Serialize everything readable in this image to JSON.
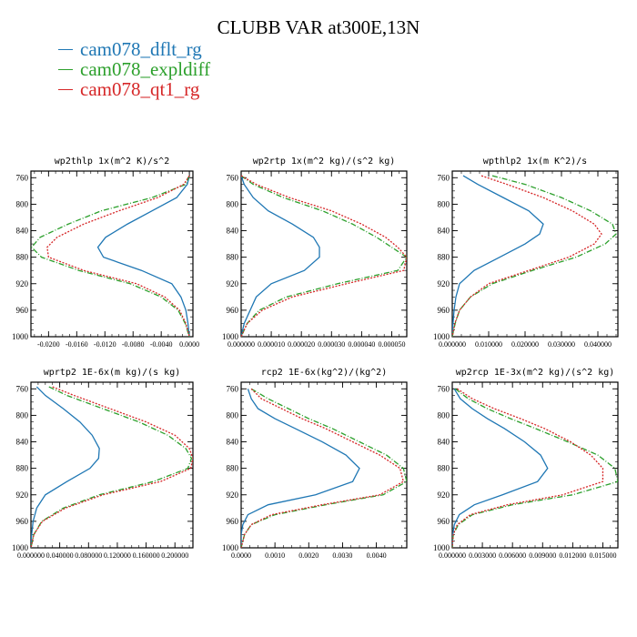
{
  "title": "CLUBB VAR at300E,13N",
  "legend": [
    {
      "name": "cam078_dflt_rg",
      "color": "#1f77b4",
      "dash": "solid"
    },
    {
      "name": "cam078_expldiff",
      "color": "#2ca02c",
      "dash": "dashdot"
    },
    {
      "name": "cam078_qt1_rg",
      "color": "#d62728",
      "dash": "dotted"
    }
  ],
  "chart_data": [
    {
      "type": "line",
      "title": "wp2thlp  1x(m^2 K)/s^2",
      "ylim": [
        1000,
        750
      ],
      "yticks": [
        760,
        800,
        840,
        880,
        920,
        960,
        1000
      ],
      "xlim": [
        -0.0225,
        0.0005
      ],
      "xticks": [
        -0.02,
        -0.016,
        -0.012,
        -0.008,
        -0.004,
        0.0
      ],
      "xtick_labels": [
        "-0.0200",
        "-0.0160",
        "-0.0120",
        "-0.0080",
        "-0.0040",
        "0.0000"
      ],
      "y": [
        757,
        770,
        790,
        810,
        830,
        850,
        865,
        880,
        900,
        920,
        940,
        960,
        980,
        1000
      ],
      "series": [
        {
          "name": "cam078_dflt_rg",
          "values": [
            0,
            -0.0003,
            -0.0018,
            -0.0053,
            -0.0088,
            -0.0119,
            -0.013,
            -0.0122,
            -0.0068,
            -0.0025,
            -0.0012,
            -0.0005,
            -0.0002,
            0
          ]
        },
        {
          "name": "cam078_expldiff",
          "values": [
            0,
            -0.0005,
            -0.0053,
            -0.0125,
            -0.0172,
            -0.0212,
            -0.0224,
            -0.021,
            -0.0157,
            -0.0084,
            -0.004,
            -0.0016,
            -0.0006,
            0
          ]
        },
        {
          "name": "cam078_qt1_rg",
          "values": [
            0,
            -0.0008,
            -0.0045,
            -0.01,
            -0.015,
            -0.0188,
            -0.0202,
            -0.02,
            -0.015,
            -0.0075,
            -0.0035,
            -0.0014,
            -0.0005,
            0
          ]
        }
      ]
    },
    {
      "type": "line",
      "title": "wp2rtp  1x(m^2 kg)/(s^2 kg)",
      "ylim": [
        1000,
        750
      ],
      "yticks": [
        760,
        800,
        840,
        880,
        920,
        960,
        1000
      ],
      "xlim": [
        0,
        5.5e-05
      ],
      "xticks": [
        0,
        1e-05,
        2e-05,
        3e-05,
        4e-05,
        5e-05
      ],
      "xtick_labels": [
        "0.000000",
        "0.000010",
        "0.000020",
        "0.000030",
        "0.000040",
        "0.000050"
      ],
      "y": [
        757,
        770,
        790,
        810,
        830,
        850,
        865,
        880,
        900,
        920,
        940,
        960,
        980,
        1000
      ],
      "series": [
        {
          "name": "cam078_dflt_rg",
          "values": [
            0,
            1e-06,
            4e-06,
            9e-06,
            1.7e-05,
            2.4e-05,
            2.6e-05,
            2.6e-05,
            2.1e-05,
            1e-05,
            5e-06,
            3e-06,
            1e-06,
            0
          ]
        },
        {
          "name": "cam078_expldiff",
          "values": [
            0,
            4e-06,
            1.4e-05,
            2.7e-05,
            3.7e-05,
            4.5e-05,
            5e-05,
            5.5e-05,
            5.2e-05,
            3.2e-05,
            1.5e-05,
            6e-06,
            2e-06,
            0
          ]
        },
        {
          "name": "cam078_qt1_rg",
          "values": [
            0,
            5e-06,
            1.6e-05,
            3e-05,
            4e-05,
            4.8e-05,
            5.2e-05,
            5.5e-05,
            5.4e-05,
            3.5e-05,
            1.7e-05,
            7e-06,
            2e-06,
            0
          ]
        }
      ]
    },
    {
      "type": "line",
      "title": "wpthlp2  1x(m K^2)/s",
      "ylim": [
        1000,
        750
      ],
      "yticks": [
        760,
        800,
        840,
        880,
        920,
        960,
        1000
      ],
      "xlim": [
        0,
        0.0455
      ],
      "xticks": [
        0,
        0.01,
        0.02,
        0.03,
        0.04
      ],
      "xtick_labels": [
        "0.000000",
        "0.010000",
        "0.020000",
        "0.030000",
        "0.040000"
      ],
      "y": [
        757,
        770,
        790,
        810,
        830,
        845,
        860,
        880,
        900,
        920,
        940,
        960,
        980,
        1000
      ],
      "series": [
        {
          "name": "cam078_dflt_rg",
          "values": [
            0.003,
            0.007,
            0.014,
            0.021,
            0.025,
            0.024,
            0.02,
            0.013,
            0.006,
            0.002,
            0.001,
            0.0005,
            0.0002,
            0
          ]
        },
        {
          "name": "cam078_expldiff",
          "values": [
            0.011,
            0.02,
            0.03,
            0.038,
            0.044,
            0.045,
            0.042,
            0.034,
            0.022,
            0.011,
            0.005,
            0.002,
            0.0008,
            0
          ]
        },
        {
          "name": "cam078_qt1_rg",
          "values": [
            0.008,
            0.015,
            0.025,
            0.033,
            0.039,
            0.041,
            0.039,
            0.032,
            0.021,
            0.01,
            0.005,
            0.002,
            0.0007,
            0
          ]
        }
      ]
    },
    {
      "type": "line",
      "title": "wprtp2  1E-6x(m kg)/(s kg)",
      "ylim": [
        1000,
        750
      ],
      "yticks": [
        760,
        800,
        840,
        880,
        920,
        960,
        1000
      ],
      "xlim": [
        0,
        0.225
      ],
      "xticks": [
        0,
        0.04,
        0.08,
        0.12,
        0.16,
        0.2
      ],
      "xtick_labels": [
        "0.000000",
        "0.040000",
        "0.080000",
        "0.120000",
        "0.160000",
        "0.200000"
      ],
      "y": [
        757,
        770,
        790,
        810,
        830,
        850,
        865,
        880,
        900,
        920,
        940,
        960,
        980,
        1000
      ],
      "series": [
        {
          "name": "cam078_dflt_rg",
          "values": [
            0.008,
            0.02,
            0.045,
            0.068,
            0.085,
            0.095,
            0.094,
            0.082,
            0.05,
            0.02,
            0.008,
            0.003,
            0.001,
            0
          ]
        },
        {
          "name": "cam078_expldiff",
          "values": [
            0.025,
            0.05,
            0.1,
            0.15,
            0.19,
            0.215,
            0.223,
            0.218,
            0.17,
            0.095,
            0.045,
            0.015,
            0.004,
            0
          ]
        },
        {
          "name": "cam078_qt1_rg",
          "values": [
            0.03,
            0.06,
            0.11,
            0.16,
            0.2,
            0.22,
            0.225,
            0.222,
            0.18,
            0.1,
            0.048,
            0.016,
            0.004,
            0
          ]
        }
      ]
    },
    {
      "type": "line",
      "title": "rcp2  1E-6x(kg^2)/(kg^2)",
      "ylim": [
        1000,
        750
      ],
      "yticks": [
        760,
        800,
        840,
        880,
        920,
        960,
        1000
      ],
      "xlim": [
        0,
        0.0049
      ],
      "xticks": [
        0,
        0.001,
        0.002,
        0.003,
        0.004
      ],
      "xtick_labels": [
        "0.0000",
        "0.0010",
        "0.0020",
        "0.0030",
        "0.0040"
      ],
      "y": [
        760,
        775,
        790,
        805,
        820,
        840,
        860,
        880,
        900,
        920,
        935,
        950,
        965,
        980,
        1000
      ],
      "series": [
        {
          "name": "cam078_dflt_rg",
          "values": [
            0.0002,
            0.0003,
            0.0005,
            0.001,
            0.0016,
            0.0024,
            0.0031,
            0.0035,
            0.0033,
            0.0022,
            0.0008,
            0.0002,
            5e-05,
            0,
            0
          ]
        },
        {
          "name": "cam078_expldiff",
          "values": [
            0.0003,
            0.0008,
            0.0014,
            0.002,
            0.0027,
            0.0035,
            0.0043,
            0.0048,
            0.0049,
            0.0042,
            0.0025,
            0.001,
            0.0003,
            0.0001,
            0
          ]
        },
        {
          "name": "cam078_qt1_rg",
          "values": [
            0.0003,
            0.0006,
            0.0012,
            0.0018,
            0.0025,
            0.0033,
            0.0041,
            0.0047,
            0.0048,
            0.0041,
            0.0024,
            0.0009,
            0.0003,
            0.0001,
            0
          ]
        }
      ]
    },
    {
      "type": "line",
      "title": "wp2rcp  1E-3x(m^2 kg)/(s^2 kg)",
      "ylim": [
        1000,
        750
      ],
      "yticks": [
        760,
        800,
        840,
        880,
        920,
        960,
        1000
      ],
      "xlim": [
        0,
        0.0165
      ],
      "xticks": [
        0,
        0.003,
        0.006,
        0.009,
        0.012,
        0.015
      ],
      "xtick_labels": [
        "0.000000",
        "0.003000",
        "0.006000",
        "0.009000",
        "0.012000",
        "0.015000"
      ],
      "y": [
        760,
        775,
        790,
        805,
        820,
        840,
        860,
        880,
        900,
        920,
        935,
        950,
        965,
        980,
        1000
      ],
      "series": [
        {
          "name": "cam078_dflt_rg",
          "values": [
            0.0002,
            0.0008,
            0.002,
            0.0035,
            0.0052,
            0.0072,
            0.0088,
            0.0095,
            0.0085,
            0.005,
            0.0022,
            0.0007,
            0.0002,
            5e-05,
            0
          ]
        },
        {
          "name": "cam078_expldiff",
          "values": [
            0.0003,
            0.0016,
            0.0035,
            0.0058,
            0.0083,
            0.0115,
            0.0145,
            0.0162,
            0.0165,
            0.012,
            0.006,
            0.002,
            0.0006,
            0.0001,
            0
          ]
        },
        {
          "name": "cam078_qt1_rg",
          "values": [
            0.0005,
            0.002,
            0.0042,
            0.0068,
            0.0092,
            0.0118,
            0.0138,
            0.015,
            0.015,
            0.011,
            0.0055,
            0.0018,
            0.0005,
            0.0001,
            0
          ]
        }
      ]
    }
  ]
}
